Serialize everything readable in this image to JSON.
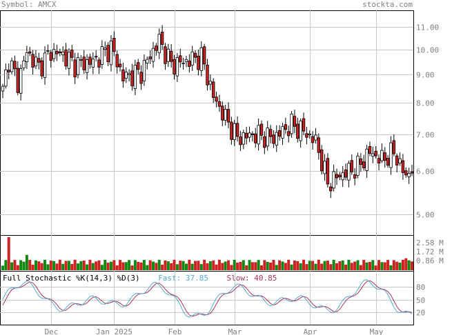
{
  "header": {
    "symbol_label": "Symbol: AMCX",
    "source_label": "stockta.com"
  },
  "price_axis_ticks": [
    "11.00",
    "10.00",
    "9.00",
    "8.00",
    "7.00",
    "6.00",
    "5.00"
  ],
  "volume_axis_ticks": [
    "2.58 M",
    "1.72 M",
    "0.86 M"
  ],
  "stoch_axis_ticks": [
    "80",
    "50",
    "20"
  ],
  "x_axis_ticks": [
    "Dec",
    "Jan 2025",
    "Feb",
    "Mar",
    "Apr",
    "May"
  ],
  "stochastic": {
    "title": "Full Stochastic %K(14,3) %D(3)",
    "fast_label": "Fast: 37.85",
    "slow_label": "Slow: 40.85"
  },
  "colors": {
    "up": "#ffffff",
    "down": "#cc2222",
    "vol_up": "#118811",
    "vol_down": "#cc2222",
    "fast_line": "#55aacc",
    "slow_line": "#aa3355",
    "grid": "#c8c8c8"
  },
  "chart_data": {
    "type": "candlestick",
    "price_scale": "log",
    "ylim": [
      4.6,
      11.8
    ],
    "volume_max": 2.58,
    "stoch_range": [
      0,
      100
    ],
    "ohlc_waypoints": [
      {
        "i": 0,
        "close": 8.4
      },
      {
        "i": 2,
        "close": 9.6
      },
      {
        "i": 5,
        "close": 8.7
      },
      {
        "i": 8,
        "close": 9.9
      },
      {
        "i": 12,
        "close": 9.3
      },
      {
        "i": 16,
        "close": 9.9
      },
      {
        "i": 20,
        "close": 9.8
      },
      {
        "i": 24,
        "close": 9.4
      },
      {
        "i": 30,
        "close": 9.5
      },
      {
        "i": 36,
        "close": 10.1
      },
      {
        "i": 40,
        "close": 8.9
      },
      {
        "i": 46,
        "close": 9.1
      },
      {
        "i": 52,
        "close": 10.4
      },
      {
        "i": 56,
        "close": 9.4
      },
      {
        "i": 60,
        "close": 9.5
      },
      {
        "i": 66,
        "close": 9.7
      },
      {
        "i": 70,
        "close": 8.2
      },
      {
        "i": 74,
        "close": 7.5
      },
      {
        "i": 78,
        "close": 6.9
      },
      {
        "i": 84,
        "close": 7.0
      },
      {
        "i": 90,
        "close": 6.9
      },
      {
        "i": 96,
        "close": 7.3
      },
      {
        "i": 100,
        "close": 7.1
      },
      {
        "i": 104,
        "close": 6.8
      },
      {
        "i": 108,
        "close": 5.7
      },
      {
        "i": 112,
        "close": 5.9
      },
      {
        "i": 118,
        "close": 6.1
      },
      {
        "i": 122,
        "close": 6.5
      },
      {
        "i": 126,
        "close": 6.3
      },
      {
        "i": 130,
        "close": 6.5
      },
      {
        "i": 134,
        "close": 5.85
      },
      {
        "i": 136,
        "close": 6.1
      }
    ],
    "num_sessions": 137
  }
}
